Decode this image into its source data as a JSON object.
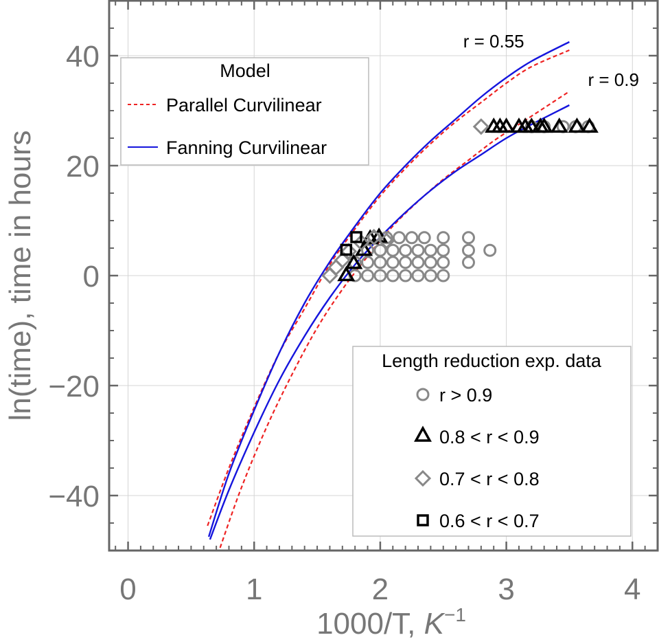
{
  "chart_data": {
    "type": "scatter",
    "xlabel": "1000/T, ",
    "xlabel_unit": "K",
    "xlabel_unit_sup": "−1",
    "ylabel": "ln(time), time in hours",
    "xlim": [
      -0.15,
      4.2
    ],
    "ylim": [
      -50,
      50
    ],
    "x_ticks": [
      0,
      1,
      2,
      3,
      4
    ],
    "x_tick_labels": [
      "0",
      "1",
      "2",
      "3",
      "4"
    ],
    "y_ticks": [
      -40,
      -20,
      0,
      20,
      40
    ],
    "y_tick_labels": [
      "−40",
      "−20",
      "0",
      "20",
      "40"
    ],
    "grid": true,
    "colors": {
      "parallel": "#ee2222",
      "fanning": "#1515dd",
      "gray_marker": "#888888",
      "black_marker": "#000000",
      "frame": "#666666",
      "grid": "#d4d4d4"
    },
    "model_legend": {
      "title": "Model",
      "position": "top-left",
      "entries": [
        {
          "label": "Parallel Curvilinear",
          "style": "dashed",
          "color": "#ee2222"
        },
        {
          "label": "Fanning Curvilinear",
          "style": "solid",
          "color": "#1515dd"
        }
      ]
    },
    "data_legend": {
      "title": "Length reduction exp. data",
      "position": "bottom-right",
      "entries": [
        {
          "label": "r > 0.9",
          "marker": "circle",
          "color": "#888888"
        },
        {
          "label": "0.8 < r < 0.9",
          "marker": "triangle",
          "color": "#000000"
        },
        {
          "label": "0.7 < r < 0.8",
          "marker": "diamond",
          "color": "#888888"
        },
        {
          "label": "0.6 < r < 0.7",
          "marker": "square",
          "color": "#000000"
        }
      ]
    },
    "annotations": [
      {
        "text": "r = 0.55",
        "x": 2.9,
        "y": 41.5
      },
      {
        "text": "r = 0.9",
        "x": 3.85,
        "y": 34.5
      }
    ],
    "curves": [
      {
        "name": "Parallel Curvilinear r = 0.55",
        "model": "parallel",
        "style": "dashed",
        "color": "#ee2222",
        "x": [
          0.63,
          0.8,
          1.0,
          1.2,
          1.4,
          1.6,
          1.8,
          2.0,
          2.2,
          2.4,
          2.6,
          2.8,
          3.0,
          3.2,
          3.5
        ],
        "y": [
          -45.5,
          -35,
          -24,
          -14,
          -6,
          2,
          8.5,
          14.5,
          19.5,
          24,
          28,
          31.5,
          35,
          38,
          41
        ]
      },
      {
        "name": "Fanning Curvilinear r = 0.55",
        "model": "fanning",
        "style": "solid",
        "color": "#1515dd",
        "x": [
          0.64,
          0.8,
          1.0,
          1.2,
          1.4,
          1.6,
          1.8,
          2.0,
          2.2,
          2.4,
          2.6,
          2.8,
          3.0,
          3.2,
          3.5
        ],
        "y": [
          -47.5,
          -36,
          -24.5,
          -14,
          -5,
          2.5,
          9,
          15,
          20,
          24.5,
          28.5,
          32.5,
          36,
          39,
          42.5
        ]
      },
      {
        "name": "Parallel Curvilinear r = 0.9",
        "model": "parallel",
        "style": "dashed",
        "color": "#ee2222",
        "x": [
          0.73,
          0.9,
          1.1,
          1.3,
          1.5,
          1.7,
          1.9,
          2.1,
          2.3,
          2.5,
          2.7,
          2.9,
          3.1,
          3.3,
          3.5
        ],
        "y": [
          -49.5,
          -38.5,
          -27.5,
          -18,
          -9.5,
          -2.5,
          3.5,
          9,
          13.5,
          17.5,
          21,
          24.5,
          27.5,
          30.5,
          33.5
        ]
      },
      {
        "name": "Fanning Curvilinear r = 0.9",
        "model": "fanning",
        "style": "solid",
        "color": "#1515dd",
        "x": [
          0.65,
          0.8,
          1.0,
          1.2,
          1.4,
          1.6,
          1.8,
          2.0,
          2.2,
          2.4,
          2.6,
          2.8,
          3.0,
          3.2,
          3.5
        ],
        "y": [
          -48,
          -39,
          -28.5,
          -19,
          -11,
          -4,
          2,
          7,
          11.5,
          15.5,
          19,
          22,
          25,
          27.5,
          31
        ]
      }
    ],
    "series": [
      {
        "name": "r > 0.9",
        "marker": "circle",
        "color": "#888888",
        "x": [
          1.8,
          1.9,
          2.0,
          2.1,
          2.2,
          2.3,
          2.4,
          2.5,
          1.8,
          1.9,
          2.0,
          2.1,
          2.2,
          2.3,
          2.4,
          2.5,
          2.7,
          1.9,
          2.0,
          2.1,
          2.2,
          2.3,
          2.4,
          2.5,
          2.7,
          2.87,
          1.95,
          2.05,
          2.15,
          2.25,
          2.35,
          2.5,
          2.7,
          3.2,
          3.3,
          3.45,
          3.55,
          3.65
        ],
        "y": [
          0,
          0,
          0,
          0,
          0,
          0,
          0,
          0,
          2.4,
          2.4,
          2.4,
          2.4,
          2.4,
          2.4,
          2.4,
          2.4,
          2.4,
          4.6,
          4.6,
          4.6,
          4.6,
          4.6,
          4.6,
          4.6,
          4.6,
          4.6,
          6.9,
          6.9,
          6.9,
          6.9,
          6.9,
          6.9,
          6.9,
          27.1,
          27.1,
          27.1,
          27.1,
          27.1
        ]
      },
      {
        "name": "0.8 < r < 0.9",
        "marker": "triangle",
        "color": "#000000",
        "x": [
          1.73,
          1.79,
          1.87,
          1.92,
          1.99,
          2.9,
          2.95,
          3.0,
          3.1,
          3.15,
          3.2,
          3.27,
          3.3,
          3.42,
          3.56,
          3.66
        ],
        "y": [
          0.2,
          2.4,
          4.8,
          6.9,
          7.2,
          27.2,
          27.2,
          27.2,
          27.2,
          27.2,
          27.2,
          27.2,
          27.2,
          27.2,
          27.2,
          27.2
        ]
      },
      {
        "name": "0.7 < r < 0.8",
        "marker": "diamond",
        "color": "#888888",
        "x": [
          1.6,
          1.65,
          1.7,
          1.75,
          1.85,
          1.95,
          2.05,
          2.8
        ],
        "y": [
          0,
          1.5,
          2.8,
          4.4,
          6.0,
          7.0,
          6.3,
          27.1
        ]
      },
      {
        "name": "0.6 < r < 0.7",
        "marker": "square",
        "color": "#000000",
        "x": [
          1.73,
          1.81
        ],
        "y": [
          4.7,
          7.0
        ]
      }
    ]
  }
}
